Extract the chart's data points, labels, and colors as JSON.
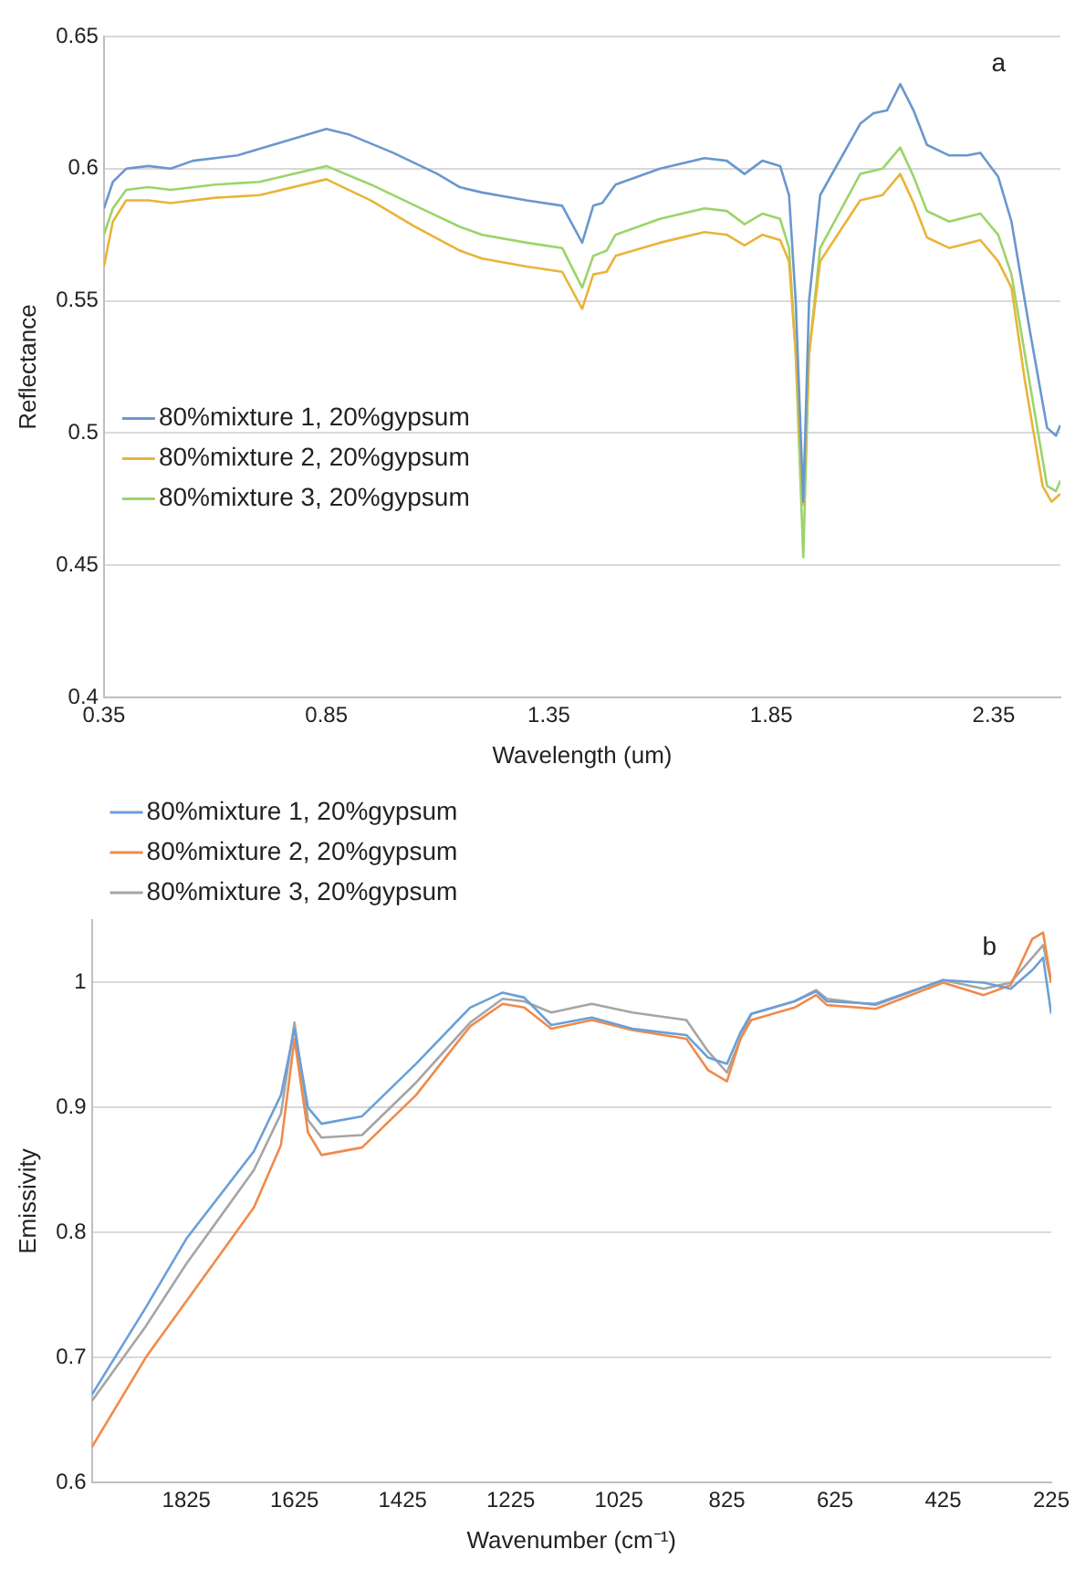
{
  "chart_data": [
    {
      "type": "line",
      "xlabel": "Wavelength (um)",
      "ylabel": "Reflectance",
      "annotations": [
        "a"
      ],
      "xlim": [
        0.35,
        2.5
      ],
      "xticks": [
        0.35,
        0.85,
        1.35,
        1.85,
        2.35
      ],
      "ylim": [
        0.4,
        0.65
      ],
      "yticks": [
        0.4,
        0.45,
        0.5,
        0.55,
        0.6,
        0.65
      ],
      "grid": "y",
      "legend": "bottom left",
      "marker": "none",
      "line_style": "solid",
      "series": [
        {
          "name": "80%mixture 1, 20%gypsum",
          "color": "#6a97cf",
          "x": [
            0.35,
            0.37,
            0.4,
            0.45,
            0.5,
            0.55,
            0.65,
            0.75,
            0.85,
            0.9,
            1.0,
            1.1,
            1.15,
            1.2,
            1.3,
            1.38,
            1.425,
            1.45,
            1.47,
            1.5,
            1.6,
            1.7,
            1.75,
            1.79,
            1.83,
            1.87,
            1.89,
            1.905,
            1.922,
            1.935,
            1.96,
            2.05,
            2.08,
            2.11,
            2.14,
            2.17,
            2.2,
            2.25,
            2.29,
            2.32,
            2.36,
            2.39,
            2.43,
            2.47,
            2.49,
            2.5
          ],
          "values": [
            0.585,
            0.595,
            0.6,
            0.601,
            0.6,
            0.603,
            0.605,
            0.61,
            0.615,
            0.613,
            0.606,
            0.598,
            0.593,
            0.591,
            0.588,
            0.586,
            0.572,
            0.586,
            0.587,
            0.594,
            0.6,
            0.604,
            0.603,
            0.598,
            0.603,
            0.601,
            0.59,
            0.55,
            0.474,
            0.55,
            0.59,
            0.617,
            0.621,
            0.622,
            0.632,
            0.622,
            0.609,
            0.605,
            0.605,
            0.606,
            0.597,
            0.58,
            0.54,
            0.502,
            0.499,
            0.503
          ]
        },
        {
          "name": "80%mixture 2, 20%gypsum",
          "color": "#e9b43a",
          "x": [
            0.35,
            0.37,
            0.4,
            0.45,
            0.5,
            0.6,
            0.7,
            0.85,
            0.95,
            1.05,
            1.15,
            1.2,
            1.3,
            1.38,
            1.425,
            1.45,
            1.48,
            1.5,
            1.6,
            1.7,
            1.75,
            1.79,
            1.83,
            1.87,
            1.89,
            1.905,
            1.922,
            1.935,
            1.96,
            2.05,
            2.1,
            2.14,
            2.17,
            2.2,
            2.25,
            2.32,
            2.36,
            2.39,
            2.42,
            2.46,
            2.48,
            2.5
          ],
          "values": [
            0.563,
            0.58,
            0.588,
            0.588,
            0.587,
            0.589,
            0.59,
            0.596,
            0.588,
            0.578,
            0.569,
            0.566,
            0.563,
            0.561,
            0.547,
            0.56,
            0.561,
            0.567,
            0.572,
            0.576,
            0.575,
            0.571,
            0.575,
            0.573,
            0.565,
            0.53,
            0.473,
            0.53,
            0.565,
            0.588,
            0.59,
            0.598,
            0.587,
            0.574,
            0.57,
            0.573,
            0.565,
            0.555,
            0.52,
            0.48,
            0.474,
            0.477
          ]
        },
        {
          "name": "80%mixture 3, 20%gypsum",
          "color": "#9bd46a",
          "x": [
            0.35,
            0.37,
            0.4,
            0.45,
            0.5,
            0.6,
            0.7,
            0.85,
            0.95,
            1.05,
            1.15,
            1.2,
            1.3,
            1.38,
            1.425,
            1.45,
            1.48,
            1.5,
            1.6,
            1.7,
            1.75,
            1.79,
            1.83,
            1.87,
            1.89,
            1.905,
            1.922,
            1.935,
            1.96,
            2.05,
            2.1,
            2.14,
            2.17,
            2.2,
            2.25,
            2.32,
            2.36,
            2.39,
            2.43,
            2.47,
            2.49,
            2.5
          ],
          "values": [
            0.575,
            0.585,
            0.592,
            0.593,
            0.592,
            0.594,
            0.595,
            0.601,
            0.594,
            0.586,
            0.578,
            0.575,
            0.572,
            0.57,
            0.555,
            0.567,
            0.569,
            0.575,
            0.581,
            0.585,
            0.584,
            0.579,
            0.583,
            0.581,
            0.57,
            0.53,
            0.453,
            0.53,
            0.57,
            0.598,
            0.6,
            0.608,
            0.597,
            0.584,
            0.58,
            0.583,
            0.575,
            0.56,
            0.52,
            0.48,
            0.478,
            0.482
          ]
        }
      ]
    },
    {
      "type": "line",
      "xlabel": "Wavenumber (cm⁻¹)",
      "ylabel": "Emissivity",
      "annotations": [
        "b"
      ],
      "xlim": [
        2000,
        225
      ],
      "xticks": [
        1825,
        1625,
        1425,
        1225,
        1025,
        825,
        625,
        425,
        225
      ],
      "ylim": [
        0.6,
        1.05
      ],
      "yticks": [
        0.6,
        0.7,
        0.8,
        0.9,
        1
      ],
      "grid": "y",
      "legend": "top left",
      "marker": "none",
      "line_style": "solid",
      "series": [
        {
          "name": "80%mixture 1, 20%gypsum",
          "color": "#6a9fd8",
          "x": [
            2000,
            1900,
            1825,
            1700,
            1650,
            1625,
            1600,
            1575,
            1500,
            1400,
            1300,
            1240,
            1200,
            1150,
            1075,
            1000,
            900,
            860,
            825,
            800,
            780,
            700,
            660,
            640,
            550,
            425,
            350,
            300,
            260,
            240,
            225
          ],
          "values": [
            0.67,
            0.74,
            0.795,
            0.865,
            0.91,
            0.963,
            0.9,
            0.887,
            0.893,
            0.935,
            0.98,
            0.992,
            0.988,
            0.966,
            0.972,
            0.963,
            0.958,
            0.94,
            0.935,
            0.96,
            0.975,
            0.985,
            0.993,
            0.985,
            0.983,
            1.002,
            1.0,
            0.995,
            1.01,
            1.02,
            0.975
          ]
        },
        {
          "name": "80%mixture 2, 20%gypsum",
          "color": "#f08a4b",
          "x": [
            2000,
            1900,
            1825,
            1700,
            1650,
            1625,
            1600,
            1575,
            1500,
            1400,
            1300,
            1240,
            1200,
            1150,
            1075,
            1000,
            900,
            860,
            825,
            800,
            780,
            700,
            660,
            640,
            550,
            425,
            350,
            300,
            260,
            240,
            225
          ],
          "values": [
            0.628,
            0.7,
            0.745,
            0.82,
            0.87,
            0.955,
            0.88,
            0.862,
            0.868,
            0.91,
            0.965,
            0.983,
            0.98,
            0.963,
            0.97,
            0.962,
            0.955,
            0.93,
            0.921,
            0.955,
            0.97,
            0.98,
            0.99,
            0.982,
            0.979,
            1.0,
            0.99,
            0.998,
            1.035,
            1.04,
            1.0
          ]
        },
        {
          "name": "80%mixture 3, 20%gypsum",
          "color": "#a5a5a5",
          "x": [
            2000,
            1900,
            1825,
            1700,
            1650,
            1625,
            1600,
            1575,
            1500,
            1400,
            1300,
            1240,
            1200,
            1150,
            1075,
            1000,
            900,
            860,
            825,
            800,
            780,
            700,
            660,
            640,
            550,
            425,
            350,
            300,
            260,
            240,
            225
          ],
          "values": [
            0.665,
            0.725,
            0.775,
            0.85,
            0.895,
            0.968,
            0.89,
            0.876,
            0.878,
            0.92,
            0.968,
            0.987,
            0.985,
            0.976,
            0.983,
            0.976,
            0.97,
            0.945,
            0.928,
            0.955,
            0.975,
            0.985,
            0.994,
            0.987,
            0.982,
            1.002,
            0.995,
            1.0,
            1.02,
            1.03,
            1.0
          ]
        }
      ]
    }
  ]
}
